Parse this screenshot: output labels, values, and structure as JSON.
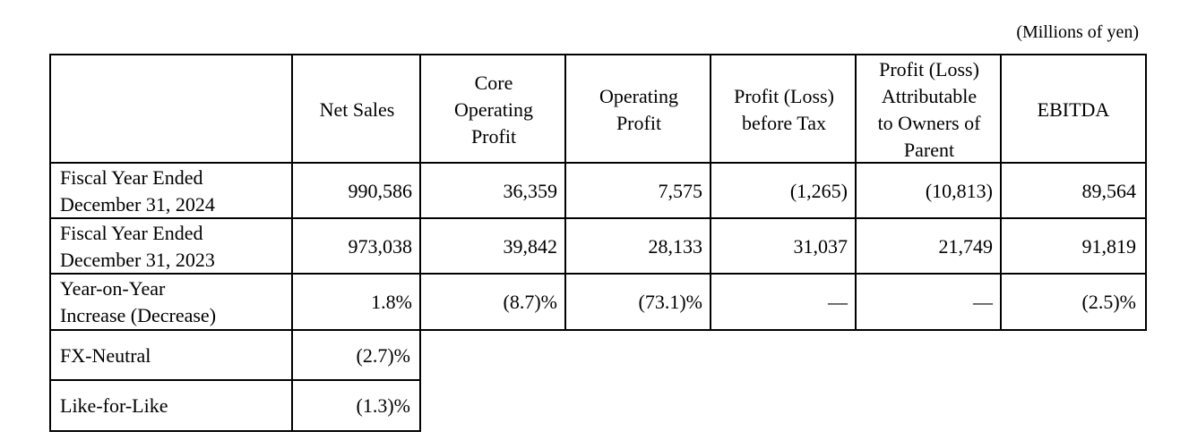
{
  "unit_note": "(Millions of yen)",
  "header": {
    "net_sales": "Net Sales",
    "core_operating_profit": "Core\nOperating\nProfit",
    "operating_profit": "Operating\nProfit",
    "profit_before_tax": "Profit (Loss)\nbefore Tax",
    "profit_attributable": "Profit (Loss)\nAttributable\nto Owners of\nParent",
    "ebitda": "EBITDA"
  },
  "rows": [
    {
      "label": "Fiscal Year Ended\nDecember 31, 2024",
      "net_sales": "990,586",
      "core_operating_profit": "36,359",
      "operating_profit": "7,575",
      "profit_before_tax": "(1,265)",
      "profit_attributable": "(10,813)",
      "ebitda": "89,564"
    },
    {
      "label": "Fiscal Year Ended\nDecember 31, 2023",
      "net_sales": "973,038",
      "core_operating_profit": "39,842",
      "operating_profit": "28,133",
      "profit_before_tax": "31,037",
      "profit_attributable": "21,749",
      "ebitda": "91,819"
    },
    {
      "label": "Year-on-Year\nIncrease (Decrease)",
      "net_sales": "1.8%",
      "core_operating_profit": "(8.7)%",
      "operating_profit": "(73.1)%",
      "profit_before_tax": "―",
      "profit_attributable": "―",
      "ebitda": "(2.5)%"
    }
  ],
  "extra_rows": [
    {
      "label": "FX-Neutral",
      "net_sales": "(2.7)%"
    },
    {
      "label": "Like-for-Like",
      "net_sales": "(1.3)%"
    }
  ]
}
